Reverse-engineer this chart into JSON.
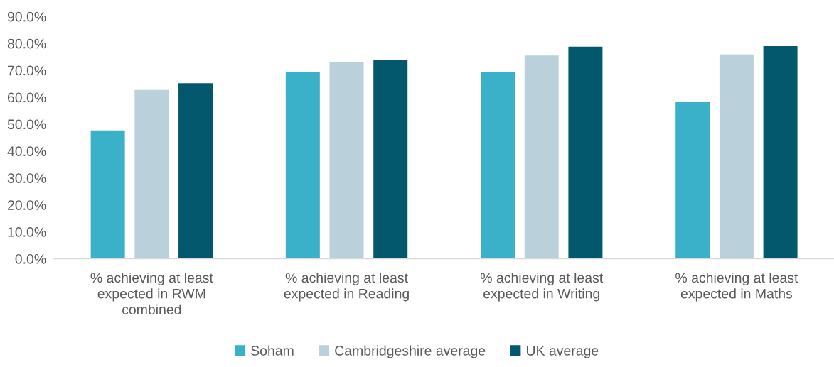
{
  "chart_data": {
    "type": "bar",
    "categories": [
      "% achieving at least expected in RWM combined",
      "% achieving at least expected in Reading",
      "% achieving at least expected in Writing",
      "% achieving at least expected in Maths"
    ],
    "series": [
      {
        "name": "Soham",
        "color": "#3bb0c9",
        "values": [
          47.7,
          69.4,
          69.4,
          58.4
        ]
      },
      {
        "name": "Cambridgeshire average",
        "color": "#bad1dc",
        "values": [
          62.7,
          73.0,
          75.5,
          75.9
        ]
      },
      {
        "name": "UK average",
        "color": "#03586e",
        "values": [
          65.2,
          73.7,
          78.8,
          79.0
        ]
      }
    ],
    "ylim": [
      0,
      90
    ],
    "yticks": [
      {
        "value": 0,
        "label": "0.0%"
      },
      {
        "value": 10,
        "label": "10.0%"
      },
      {
        "value": 20,
        "label": "20.0%"
      },
      {
        "value": 30,
        "label": "30.0%"
      },
      {
        "value": 40,
        "label": "40.0%"
      },
      {
        "value": 50,
        "label": "50.0%"
      },
      {
        "value": 60,
        "label": "60.0%"
      },
      {
        "value": 70,
        "label": "70.0%"
      },
      {
        "value": 80,
        "label": "80.0%"
      },
      {
        "value": 90,
        "label": "90.0%"
      }
    ],
    "grid": false,
    "legend": "bottom"
  }
}
